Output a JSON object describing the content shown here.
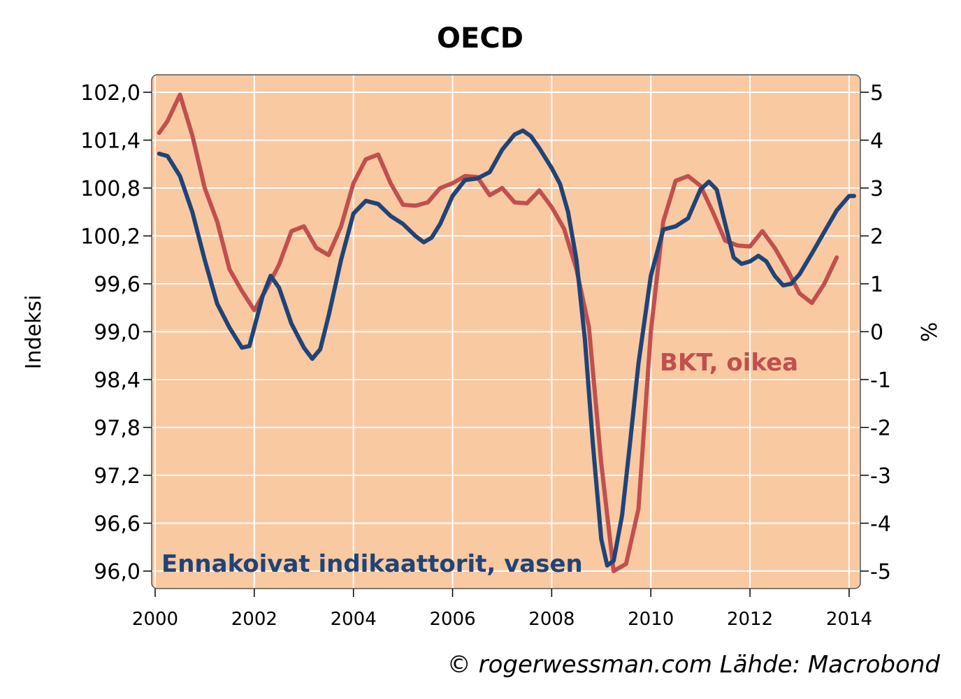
{
  "colors": {
    "plot_background": "#f9c9a2",
    "grid": "#ffffff",
    "leading_indicator": "#1f4477",
    "gdp": "#c0504d",
    "frame": "#555555"
  },
  "chart_data": {
    "type": "line",
    "title": "OECD",
    "source": "© rogerwessman.com Lähde: Macrobond",
    "x_ticks": [
      "2000",
      "2002",
      "2004",
      "2006",
      "2008",
      "2010",
      "2012",
      "2014"
    ],
    "xlim": [
      2000,
      2014.1
    ],
    "y_left": {
      "label": "Indeksi",
      "lim": [
        96.0,
        102.0
      ],
      "ticks": [
        "96,0",
        "96,6",
        "97,2",
        "97,8",
        "98,4",
        "99,0",
        "99,6",
        "100,2",
        "100,8",
        "101,4",
        "102,0"
      ]
    },
    "y_right": {
      "label": "%",
      "lim": [
        -5,
        5
      ],
      "ticks": [
        "-5",
        "-4",
        "-3",
        "-2",
        "-1",
        "0",
        "1",
        "2",
        "3",
        "4",
        "5"
      ]
    },
    "grid": true,
    "series": [
      {
        "name": "Ennakoivat indikaattorit, vasen",
        "axis": "left",
        "color": "#1f4477",
        "points": [
          [
            2000.08,
            101.23
          ],
          [
            2000.25,
            101.2
          ],
          [
            2000.5,
            100.95
          ],
          [
            2000.75,
            100.5
          ],
          [
            2001.0,
            99.9
          ],
          [
            2001.25,
            99.35
          ],
          [
            2001.5,
            99.05
          ],
          [
            2001.75,
            98.8
          ],
          [
            2001.9,
            98.82
          ],
          [
            2002.0,
            99.05
          ],
          [
            2002.17,
            99.45
          ],
          [
            2002.33,
            99.7
          ],
          [
            2002.5,
            99.55
          ],
          [
            2002.75,
            99.1
          ],
          [
            2003.0,
            98.8
          ],
          [
            2003.17,
            98.66
          ],
          [
            2003.33,
            98.78
          ],
          [
            2003.5,
            99.2
          ],
          [
            2003.75,
            99.9
          ],
          [
            2004.0,
            100.48
          ],
          [
            2004.25,
            100.64
          ],
          [
            2004.5,
            100.6
          ],
          [
            2004.75,
            100.45
          ],
          [
            2005.0,
            100.35
          ],
          [
            2005.25,
            100.2
          ],
          [
            2005.42,
            100.12
          ],
          [
            2005.58,
            100.18
          ],
          [
            2005.75,
            100.35
          ],
          [
            2006.0,
            100.7
          ],
          [
            2006.25,
            100.9
          ],
          [
            2006.5,
            100.92
          ],
          [
            2006.75,
            101.0
          ],
          [
            2007.0,
            101.28
          ],
          [
            2007.25,
            101.47
          ],
          [
            2007.42,
            101.52
          ],
          [
            2007.58,
            101.45
          ],
          [
            2007.75,
            101.3
          ],
          [
            2008.0,
            101.05
          ],
          [
            2008.17,
            100.85
          ],
          [
            2008.33,
            100.5
          ],
          [
            2008.5,
            99.9
          ],
          [
            2008.67,
            98.9
          ],
          [
            2008.83,
            97.6
          ],
          [
            2009.0,
            96.4
          ],
          [
            2009.12,
            96.07
          ],
          [
            2009.25,
            96.13
          ],
          [
            2009.42,
            96.7
          ],
          [
            2009.58,
            97.6
          ],
          [
            2009.75,
            98.6
          ],
          [
            2010.0,
            99.7
          ],
          [
            2010.25,
            100.28
          ],
          [
            2010.5,
            100.32
          ],
          [
            2010.75,
            100.42
          ],
          [
            2011.0,
            100.78
          ],
          [
            2011.17,
            100.88
          ],
          [
            2011.33,
            100.78
          ],
          [
            2011.5,
            100.35
          ],
          [
            2011.67,
            99.93
          ],
          [
            2011.83,
            99.85
          ],
          [
            2012.0,
            99.88
          ],
          [
            2012.17,
            99.95
          ],
          [
            2012.33,
            99.88
          ],
          [
            2012.5,
            99.7
          ],
          [
            2012.67,
            99.58
          ],
          [
            2012.83,
            99.6
          ],
          [
            2013.0,
            99.72
          ],
          [
            2013.25,
            99.98
          ],
          [
            2013.5,
            100.25
          ],
          [
            2013.75,
            100.52
          ],
          [
            2014.0,
            100.7
          ],
          [
            2014.1,
            100.7
          ]
        ]
      },
      {
        "name": "BKT, oikea",
        "axis": "right",
        "color": "#c0504d",
        "points": [
          [
            2000.08,
            4.15
          ],
          [
            2000.25,
            4.4
          ],
          [
            2000.5,
            4.95
          ],
          [
            2000.75,
            4.1
          ],
          [
            2001.0,
            3.0
          ],
          [
            2001.25,
            2.3
          ],
          [
            2001.5,
            1.3
          ],
          [
            2001.75,
            0.85
          ],
          [
            2002.0,
            0.45
          ],
          [
            2002.25,
            0.9
          ],
          [
            2002.5,
            1.4
          ],
          [
            2002.75,
            2.1
          ],
          [
            2003.0,
            2.2
          ],
          [
            2003.25,
            1.75
          ],
          [
            2003.5,
            1.6
          ],
          [
            2003.75,
            2.2
          ],
          [
            2004.0,
            3.1
          ],
          [
            2004.25,
            3.6
          ],
          [
            2004.5,
            3.7
          ],
          [
            2004.75,
            3.1
          ],
          [
            2005.0,
            2.65
          ],
          [
            2005.25,
            2.63
          ],
          [
            2005.5,
            2.7
          ],
          [
            2005.75,
            3.0
          ],
          [
            2006.0,
            3.1
          ],
          [
            2006.25,
            3.25
          ],
          [
            2006.5,
            3.23
          ],
          [
            2006.75,
            2.85
          ],
          [
            2007.0,
            3.0
          ],
          [
            2007.25,
            2.7
          ],
          [
            2007.5,
            2.68
          ],
          [
            2007.75,
            2.95
          ],
          [
            2008.0,
            2.6
          ],
          [
            2008.25,
            2.15
          ],
          [
            2008.5,
            1.3
          ],
          [
            2008.75,
            0.1
          ],
          [
            2009.0,
            -2.75
          ],
          [
            2009.25,
            -5.0
          ],
          [
            2009.5,
            -4.85
          ],
          [
            2009.75,
            -3.7
          ],
          [
            2010.0,
            0.0
          ],
          [
            2010.25,
            2.3
          ],
          [
            2010.5,
            3.15
          ],
          [
            2010.75,
            3.25
          ],
          [
            2011.0,
            3.05
          ],
          [
            2011.25,
            2.5
          ],
          [
            2011.5,
            1.9
          ],
          [
            2011.75,
            1.8
          ],
          [
            2012.0,
            1.78
          ],
          [
            2012.25,
            2.1
          ],
          [
            2012.5,
            1.75
          ],
          [
            2012.75,
            1.3
          ],
          [
            2013.0,
            0.8
          ],
          [
            2013.25,
            0.6
          ],
          [
            2013.5,
            1.0
          ],
          [
            2013.75,
            1.55
          ]
        ]
      }
    ]
  }
}
